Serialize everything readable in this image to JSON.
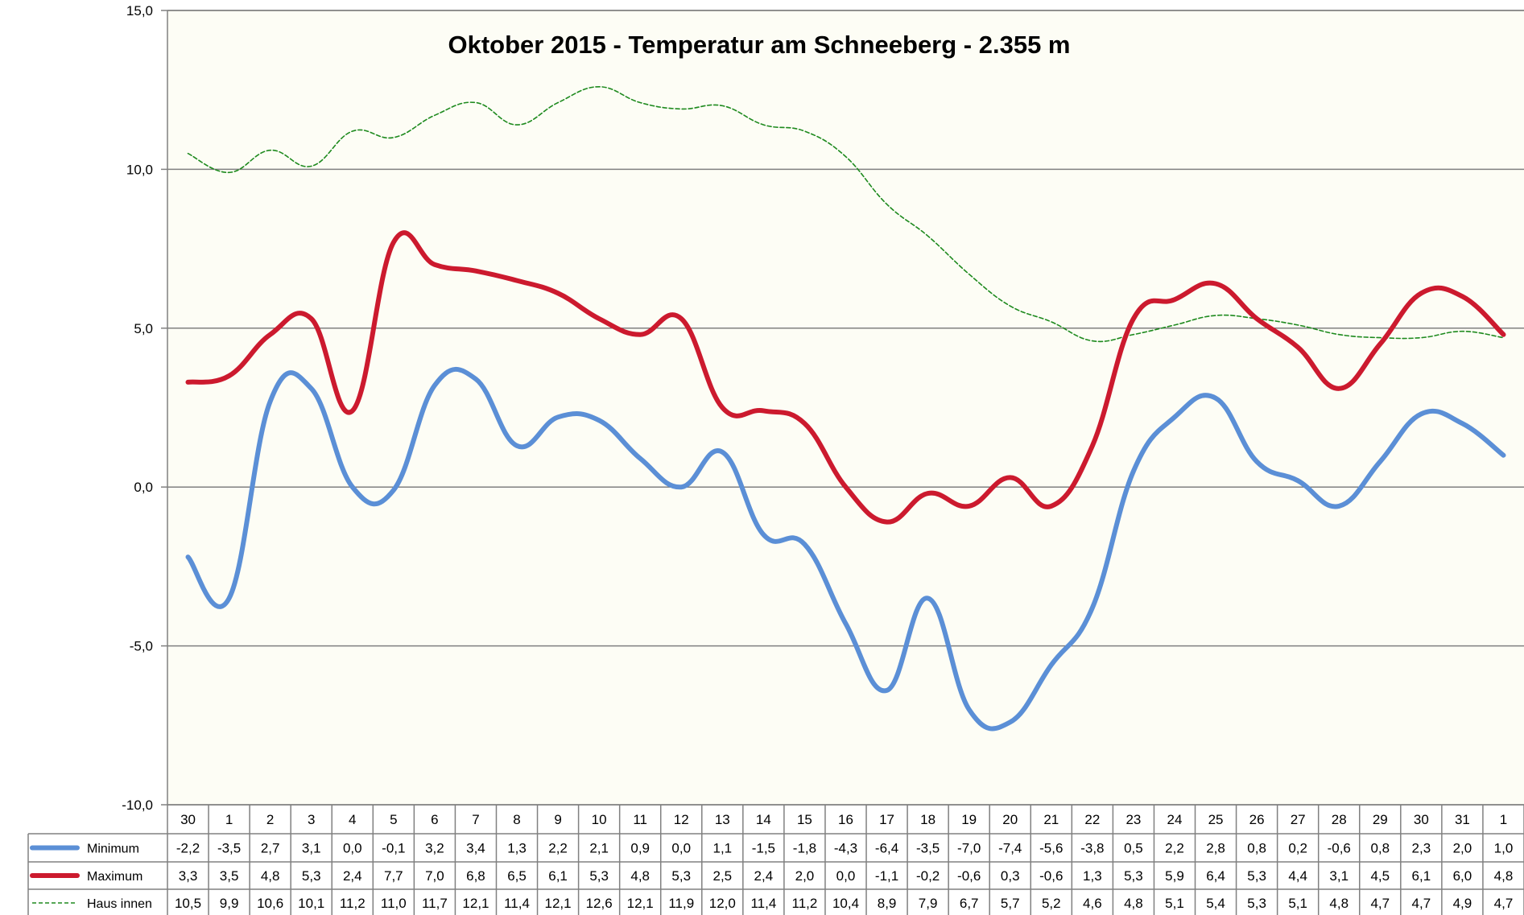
{
  "chart_data": {
    "type": "line",
    "title": "Oktober 2015 - Temperatur am Schneeberg - 2.355 m",
    "categories": [
      "30",
      "1",
      "2",
      "3",
      "4",
      "5",
      "6",
      "7",
      "8",
      "9",
      "10",
      "11",
      "12",
      "13",
      "14",
      "15",
      "16",
      "17",
      "18",
      "19",
      "20",
      "21",
      "22",
      "23",
      "24",
      "25",
      "26",
      "27",
      "28",
      "29",
      "30",
      "31",
      "1"
    ],
    "ylim": [
      -10,
      15
    ],
    "yticks": [
      "-10,0",
      "-5,0",
      "0,0",
      "5,0",
      "10,0",
      "15,0"
    ],
    "ytick_values": [
      -10,
      -5,
      0,
      5,
      10,
      15
    ],
    "grid": true,
    "series": [
      {
        "name": "Minimum",
        "color": "#5B8FD6",
        "style": "solid-thick",
        "values": [
          -2.2,
          -3.5,
          2.7,
          3.1,
          0.0,
          -0.1,
          3.2,
          3.4,
          1.3,
          2.2,
          2.1,
          0.9,
          0.0,
          1.1,
          -1.5,
          -1.8,
          -4.3,
          -6.4,
          -3.5,
          -7.0,
          -7.4,
          -5.6,
          -3.8,
          0.5,
          2.2,
          2.8,
          0.8,
          0.2,
          -0.6,
          0.8,
          2.3,
          2.0,
          1.0
        ],
        "labels": [
          "-2,2",
          "-3,5",
          "2,7",
          "3,1",
          "0,0",
          "-0,1",
          "3,2",
          "3,4",
          "1,3",
          "2,2",
          "2,1",
          "0,9",
          "0,0",
          "1,1",
          "-1,5",
          "-1,8",
          "-4,3",
          "-6,4",
          "-3,5",
          "-7,0",
          "-7,4",
          "-5,6",
          "-3,8",
          "0,5",
          "2,2",
          "2,8",
          "0,8",
          "0,2",
          "-0,6",
          "0,8",
          "2,3",
          "2,0",
          "1,0"
        ]
      },
      {
        "name": "Maximum",
        "color": "#CC1A2E",
        "style": "solid-thick",
        "values": [
          3.3,
          3.5,
          4.8,
          5.3,
          2.4,
          7.7,
          7.0,
          6.8,
          6.5,
          6.1,
          5.3,
          4.8,
          5.3,
          2.5,
          2.4,
          2.0,
          0.0,
          -1.1,
          -0.2,
          -0.6,
          0.3,
          -0.6,
          1.3,
          5.3,
          5.9,
          6.4,
          5.3,
          4.4,
          3.1,
          4.5,
          6.1,
          6.0,
          4.8
        ],
        "labels": [
          "3,3",
          "3,5",
          "4,8",
          "5,3",
          "2,4",
          "7,7",
          "7,0",
          "6,8",
          "6,5",
          "6,1",
          "5,3",
          "4,8",
          "5,3",
          "2,5",
          "2,4",
          "2,0",
          "0,0",
          "-1,1",
          "-0,2",
          "-0,6",
          "0,3",
          "-0,6",
          "1,3",
          "5,3",
          "5,9",
          "6,4",
          "5,3",
          "4,4",
          "3,1",
          "4,5",
          "6,1",
          "6,0",
          "4,8"
        ]
      },
      {
        "name": "Haus innen",
        "color": "#1E8A1E",
        "style": "dashed-thin",
        "values": [
          10.5,
          9.9,
          10.6,
          10.1,
          11.2,
          11.0,
          11.7,
          12.1,
          11.4,
          12.1,
          12.6,
          12.1,
          11.9,
          12.0,
          11.4,
          11.2,
          10.4,
          8.9,
          7.9,
          6.7,
          5.7,
          5.2,
          4.6,
          4.8,
          5.1,
          5.4,
          5.3,
          5.1,
          4.8,
          4.7,
          4.7,
          4.9,
          4.7
        ],
        "labels": [
          "10,5",
          "9,9",
          "10,6",
          "10,1",
          "11,2",
          "11,0",
          "11,7",
          "12,1",
          "11,4",
          "12,1",
          "12,6",
          "12,1",
          "11,9",
          "12,0",
          "11,4",
          "11,2",
          "10,4",
          "8,9",
          "7,9",
          "6,7",
          "5,7",
          "5,2",
          "4,6",
          "4,8",
          "5,1",
          "5,4",
          "5,3",
          "5,1",
          "4,8",
          "4,7",
          "4,7",
          "4,9",
          "4,7"
        ]
      }
    ]
  }
}
